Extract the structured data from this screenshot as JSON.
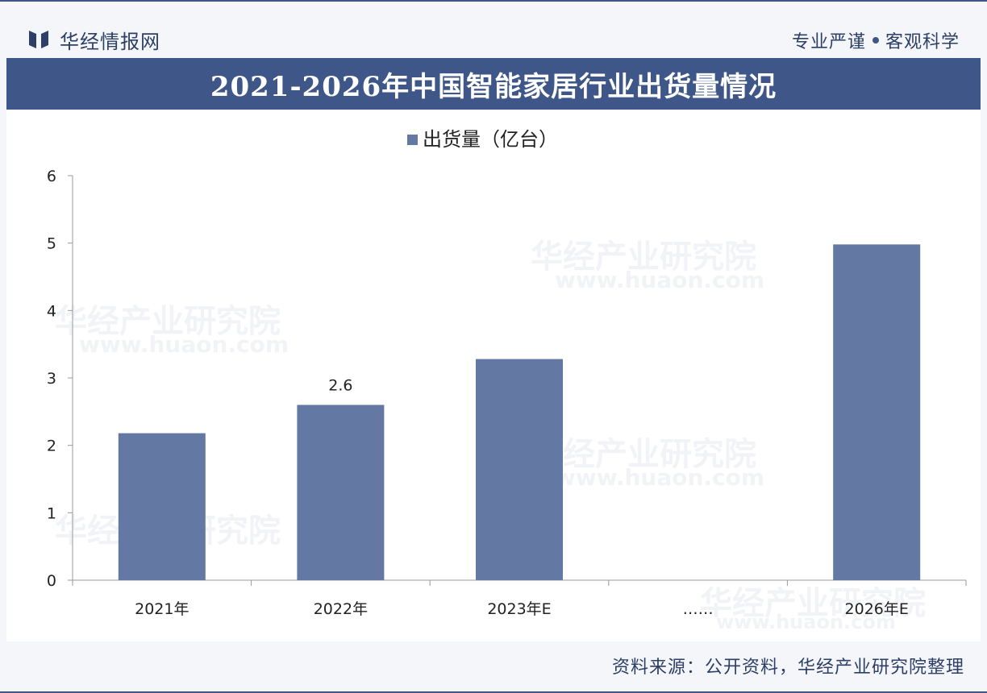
{
  "header": {
    "logo_text": "华经情报网",
    "slogan_left": "专业严谨",
    "slogan_right": "客观科学"
  },
  "title": "2021-2026年中国智能家居行业出货量情况",
  "footer": {
    "source": "资料来源：公开资料，华经产业研究院整理"
  },
  "watermarks": {
    "cn": "华经产业研究院",
    "url": "www.huaon.com"
  },
  "colors": {
    "brand": "#3e5788",
    "bar": "#6379a3"
  },
  "chart_data": {
    "type": "bar",
    "legend": "出货量（亿台）",
    "legend_position": "top",
    "categories": [
      "2021年",
      "2022年",
      "2023年E",
      "……",
      "2026年E"
    ],
    "series": [
      {
        "name": "出货量（亿台）",
        "values": [
          2.18,
          2.6,
          3.28,
          null,
          4.98
        ]
      }
    ],
    "data_labels": [
      "",
      "2.6",
      "",
      "",
      ""
    ],
    "ylim": [
      0,
      6
    ],
    "yticks": [
      0,
      1,
      2,
      3,
      4,
      5,
      6
    ],
    "grid": false
  }
}
